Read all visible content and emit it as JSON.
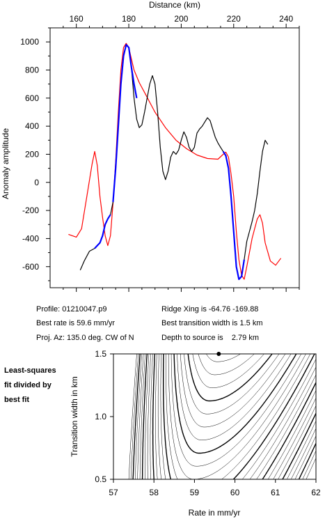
{
  "chart_data": [
    {
      "type": "line",
      "title": "",
      "xlabel": "Distance (km)",
      "ylabel": "Anomaly amplitude",
      "xlim": [
        150,
        245
      ],
      "ylim": [
        -750,
        1100
      ],
      "x_ticks": [
        160,
        180,
        200,
        220,
        240
      ],
      "y_ticks": [
        -600,
        -400,
        -200,
        0,
        200,
        400,
        600,
        800,
        1000
      ],
      "x_axis_position": "top",
      "grid": false,
      "series": [
        {
          "name": "",
          "color": "#ff0000",
          "role": "model",
          "x": [
            157,
            160,
            162,
            164,
            166,
            167,
            168,
            169,
            170,
            171,
            172,
            173,
            174,
            175,
            176,
            177,
            178,
            179,
            180,
            181,
            182,
            184,
            186,
            190,
            194,
            198,
            202,
            206,
            210,
            214,
            216,
            217,
            218,
            219,
            220,
            221,
            222,
            223,
            224,
            225,
            226,
            227,
            228,
            229,
            230,
            231,
            232,
            234,
            236,
            238
          ],
          "y": [
            -370,
            -390,
            -330,
            -100,
            130,
            220,
            120,
            -100,
            -250,
            -380,
            -450,
            -380,
            -150,
            150,
            500,
            800,
            960,
            990,
            960,
            880,
            800,
            710,
            640,
            500,
            390,
            300,
            240,
            195,
            170,
            165,
            200,
            215,
            180,
            60,
            -100,
            -350,
            -550,
            -660,
            -690,
            -600,
            -500,
            -400,
            -330,
            -260,
            -230,
            -290,
            -430,
            -560,
            -590,
            -540
          ]
        },
        {
          "name": "",
          "color": "#000000",
          "role": "observed",
          "x": [
            161.5,
            163,
            165,
            167,
            169,
            170,
            171,
            172,
            173,
            174,
            175,
            176,
            177,
            178,
            179,
            180,
            181,
            182,
            183,
            184,
            185,
            186,
            187,
            188,
            189,
            190,
            191,
            192,
            193,
            194,
            195,
            196,
            197,
            198,
            199,
            200,
            201,
            202,
            203,
            204,
            205,
            206,
            207,
            208,
            209,
            210,
            211,
            212,
            213,
            214,
            215,
            216,
            217,
            218,
            219,
            220,
            221,
            222,
            223,
            224,
            225,
            226,
            227,
            228,
            229,
            230,
            231,
            232,
            233
          ],
          "y": [
            -625,
            -560,
            -490,
            -470,
            -430,
            -380,
            -300,
            -260,
            -230,
            -140,
            100,
            400,
            700,
            900,
            980,
            960,
            820,
            600,
            450,
            390,
            410,
            500,
            600,
            700,
            760,
            700,
            500,
            250,
            80,
            20,
            80,
            180,
            220,
            200,
            230,
            300,
            360,
            320,
            250,
            220,
            250,
            350,
            380,
            400,
            430,
            460,
            440,
            380,
            320,
            280,
            250,
            220,
            190,
            100,
            -100,
            -350,
            -600,
            -690,
            -670,
            -550,
            -420,
            -350,
            -280,
            -200,
            -80,
            80,
            220,
            300,
            270
          ]
        },
        {
          "name": "",
          "color": "#0000ff",
          "role": "fit segment",
          "x": [
            174,
            175,
            176,
            177,
            178,
            179,
            180,
            181,
            182,
            183
          ],
          "y": [
            -140,
            100,
            400,
            700,
            900,
            980,
            960,
            820,
            700,
            600
          ]
        },
        {
          "name": "",
          "color": "#0000ff",
          "role": "fit segment",
          "x": [
            167,
            168,
            169,
            170,
            171,
            172,
            173
          ],
          "y": [
            -470,
            -450,
            -430,
            -380,
            -300,
            -260,
            -230
          ]
        },
        {
          "name": "",
          "color": "#0000ff",
          "role": "fit segment",
          "x": [
            216,
            217,
            218,
            219,
            220,
            221,
            222,
            223,
            224
          ],
          "y": [
            220,
            190,
            100,
            -100,
            -350,
            -600,
            -690,
            -670,
            -550
          ]
        }
      ]
    },
    {
      "type": "contour",
      "title": "",
      "xlabel": "Rate in mm/yr",
      "ylabel": "Transition width in km",
      "xlim": [
        57,
        62
      ],
      "ylim": [
        0.5,
        1.5
      ],
      "x_ticks": [
        57,
        58,
        59,
        60,
        61,
        62
      ],
      "y_ticks": [
        0.5,
        1.0,
        1.5
      ],
      "grid": false,
      "best_fit_marker": {
        "x": 59.6,
        "y": 1.5
      },
      "minimum": {
        "x": 59.6,
        "y": 1.5
      }
    }
  ],
  "info": {
    "profile": "Profile: 01210047.p9",
    "best_rate": "Best rate is 59.6 mm/yr",
    "proj_az": "Proj. Az: 135.0 deg. CW of N",
    "ridge_xing": "Ridge Xing is -64.76 -169.88",
    "best_width": "Best transition width is 1.5 km",
    "depth": "Depth to source is    2.79 km"
  },
  "note": {
    "line1": "Least-squares",
    "line2": "fit divided by",
    "line3": "best fit"
  }
}
